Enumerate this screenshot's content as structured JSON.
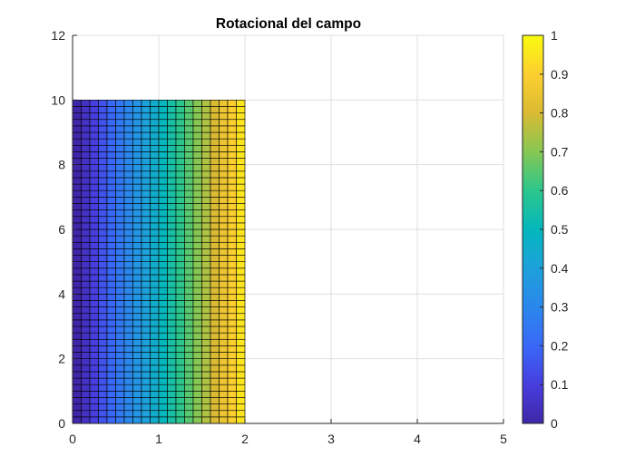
{
  "chart_data": {
    "type": "heatmap",
    "title": "Rotacional del campo",
    "xlabel": "",
    "ylabel": "",
    "xlim": [
      0,
      5
    ],
    "ylim": [
      0,
      12
    ],
    "x_ticks": [
      "0",
      "1",
      "2",
      "3",
      "4",
      "5"
    ],
    "y_ticks": [
      "0",
      "2",
      "4",
      "6",
      "8",
      "10",
      "12"
    ],
    "grid": true,
    "surface": {
      "x_range": [
        0,
        2
      ],
      "y_range": [
        0,
        10
      ],
      "x_step": 0.1,
      "y_step": 0.2,
      "value_formula": "value = x / 2 (increases linearly with x, constant in y)",
      "value_at_x": [
        0,
        0.05,
        0.1,
        0.15,
        0.2,
        0.25,
        0.3,
        0.35,
        0.4,
        0.45,
        0.5,
        0.55,
        0.6,
        0.65,
        0.7,
        0.75,
        0.8,
        0.85,
        0.9,
        0.95,
        1.0
      ]
    },
    "colorbar": {
      "colormap": "parula",
      "limits": [
        0,
        1
      ],
      "ticks": [
        "0",
        "0.1",
        "0.2",
        "0.3",
        "0.4",
        "0.5",
        "0.6",
        "0.7",
        "0.8",
        "0.9",
        "1"
      ]
    }
  }
}
